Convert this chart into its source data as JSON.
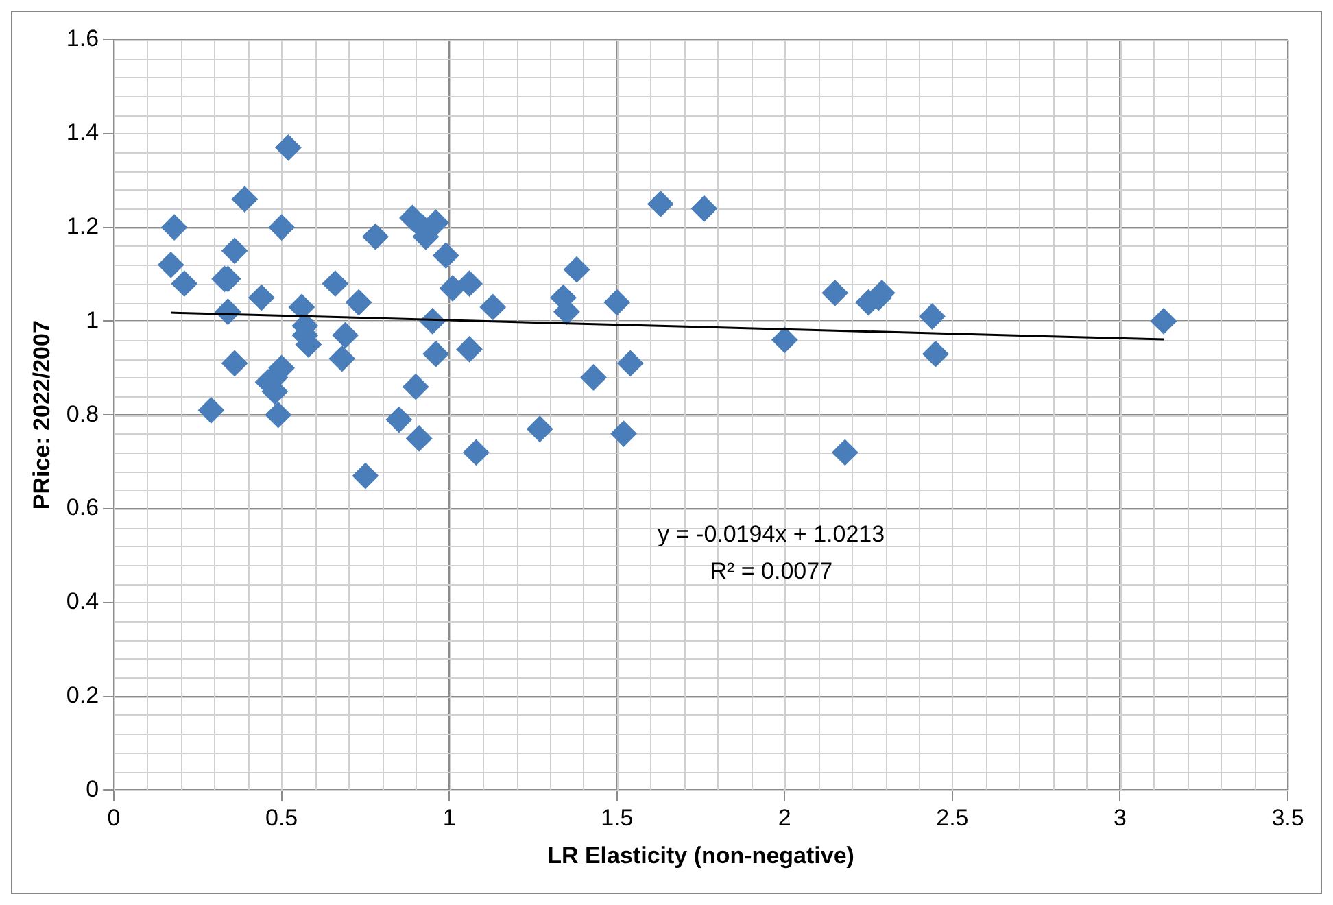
{
  "chart_data": {
    "type": "scatter",
    "xlabel": "LR Elasticity (non-negative)",
    "ylabel": "PRice: 2022/2007",
    "xlim": [
      0,
      3.5
    ],
    "xticks": [
      0,
      0.5,
      1,
      1.5,
      2,
      2.5,
      3,
      3.5
    ],
    "ylim": [
      0,
      1.6
    ],
    "yticks": [
      0,
      0.2,
      0.4,
      0.6,
      0.8,
      1,
      1.2,
      1.4,
      1.6
    ],
    "grid": true,
    "legend": false,
    "annotations": [
      "y = -0.0194x + 1.0213",
      "R² = 0.0077"
    ],
    "series": [
      {
        "color": "#4a7ebb",
        "marker": "diamond",
        "x": [
          0.17,
          0.18,
          0.21,
          0.29,
          0.33,
          0.34,
          0.34,
          0.36,
          0.36,
          0.39,
          0.44,
          0.46,
          0.48,
          0.48,
          0.49,
          0.5,
          0.5,
          0.52,
          0.56,
          0.57,
          0.57,
          0.58,
          0.66,
          0.68,
          0.69,
          0.73,
          0.75,
          0.78,
          0.85,
          0.89,
          0.9,
          0.91,
          0.92,
          0.93,
          0.96,
          0.95,
          0.96,
          0.99,
          1.01,
          1.06,
          1.06,
          1.08,
          1.13,
          1.27,
          1.34,
          1.35,
          1.38,
          1.43,
          1.5,
          1.52,
          1.54,
          1.63,
          1.76,
          2.0,
          2.15,
          2.18,
          2.25,
          2.28,
          2.29,
          2.44,
          2.45,
          3.13
        ],
        "values": [
          1.12,
          1.2,
          1.08,
          0.81,
          1.09,
          1.02,
          1.09,
          1.15,
          0.91,
          1.26,
          1.05,
          0.87,
          0.85,
          0.88,
          0.8,
          0.9,
          1.2,
          1.37,
          1.03,
          0.99,
          0.97,
          0.95,
          1.08,
          0.92,
          0.97,
          1.04,
          0.67,
          1.18,
          0.79,
          1.22,
          0.86,
          0.75,
          1.2,
          1.18,
          1.21,
          1.0,
          0.93,
          1.14,
          1.07,
          1.08,
          0.94,
          0.72,
          1.03,
          0.77,
          1.05,
          1.02,
          1.11,
          0.88,
          1.04,
          0.76,
          0.91,
          1.25,
          1.24,
          0.96,
          1.06,
          0.72,
          1.04,
          1.05,
          1.06,
          1.01,
          0.93,
          1.0
        ]
      },
      {
        "type": "line",
        "color": "#000000",
        "marker": "none",
        "x": [
          0.17,
          3.13
        ],
        "values": [
          1.018,
          0.961
        ]
      }
    ]
  }
}
